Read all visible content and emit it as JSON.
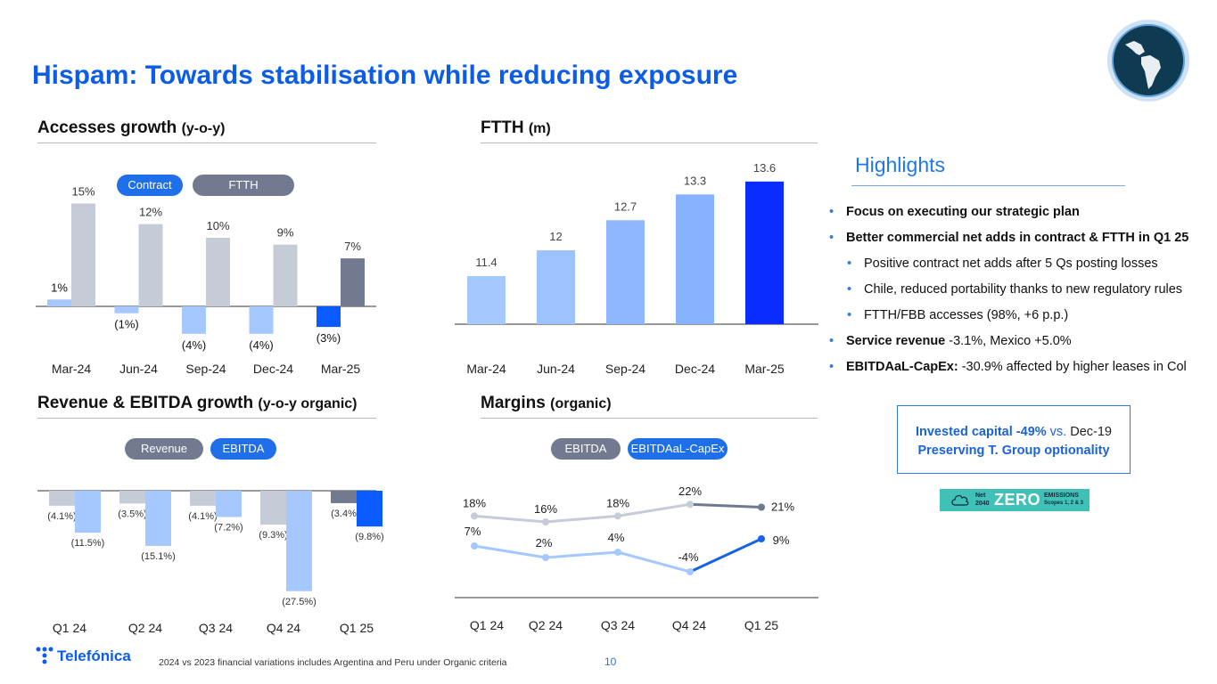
{
  "title": "Hispam: Towards stabilisation while reducing exposure",
  "colors": {
    "brand_blue": "#0b5ce6",
    "light_bar": "#a4c8ff",
    "grey_bar": "#c6cbd8",
    "dark_bar": "#717a91",
    "bright_bar": "#0a2cff"
  },
  "sections": {
    "accesses": {
      "title": "Accesses growth",
      "subtitle": "(y-o-y)"
    },
    "ftth": {
      "title": "FTTH",
      "subtitle": "(m)"
    },
    "revenue": {
      "title": "Revenue & EBITDA growth",
      "subtitle": "(y-o-y organic)"
    },
    "margins": {
      "title": "Margins",
      "subtitle": "(organic)"
    }
  },
  "chart_data": [
    {
      "id": "accesses",
      "type": "bar",
      "categories": [
        "Mar-24",
        "Jun-24",
        "Sep-24",
        "Dec-24",
        "Mar-25"
      ],
      "series": [
        {
          "name": "Contract",
          "values": [
            1,
            -1,
            -4,
            -4,
            -3
          ],
          "labels": [
            "1%",
            "(1%)",
            "(4%)",
            "(4%)",
            "(3%)"
          ]
        },
        {
          "name": "FTTH",
          "values": [
            15,
            12,
            10,
            9,
            7
          ],
          "labels": [
            "15%",
            "12%",
            "10%",
            "9%",
            "7%"
          ]
        }
      ],
      "legend": [
        "Contract",
        "FTTH"
      ]
    },
    {
      "id": "ftth",
      "type": "bar",
      "categories": [
        "Mar-24",
        "Jun-24",
        "Sep-24",
        "Dec-24",
        "Mar-25"
      ],
      "values": [
        11.4,
        12,
        12.7,
        13.3,
        13.6
      ],
      "labels": [
        "11.4",
        "12",
        "12.7",
        "13.3",
        "13.6"
      ]
    },
    {
      "id": "revenue",
      "type": "bar",
      "categories": [
        "Q1 24",
        "Q2 24",
        "Q3 24",
        "Q4 24",
        "Q1 25"
      ],
      "series": [
        {
          "name": "Revenue",
          "values": [
            -4.1,
            -3.5,
            -4.1,
            -9.3,
            -3.4
          ],
          "labels": [
            "(4.1%)",
            "(3.5%)",
            "(4.1%)",
            "(9.3%)",
            "(3.4%"
          ]
        },
        {
          "name": "EBITDA",
          "values": [
            -11.5,
            -15.1,
            -7.2,
            -27.5,
            -9.8
          ],
          "labels": [
            "(11.5%)",
            "(15.1%)",
            "(7.2%)",
            "(27.5%)",
            "(9.8%)"
          ]
        }
      ],
      "legend": [
        "Revenue",
        "EBITDA"
      ]
    },
    {
      "id": "margins",
      "type": "line",
      "categories": [
        "Q1 24",
        "Q2 24",
        "Q3 24",
        "Q4 24",
        "Q1 25"
      ],
      "series": [
        {
          "name": "EBITDA",
          "values": [
            18,
            16,
            18,
            22,
            21
          ],
          "labels": [
            "18%",
            "16%",
            "18%",
            "22%",
            "21%"
          ]
        },
        {
          "name": "EBITDAaL-CapEx",
          "values": [
            7,
            2,
            4,
            -4,
            9
          ],
          "labels": [
            "7%",
            "2%",
            "4%",
            "-4%",
            "9%"
          ]
        }
      ],
      "legend": [
        "EBITDA",
        "EBITDAaL-CapEx"
      ]
    }
  ],
  "highlights": {
    "title": "Highlights",
    "items": [
      {
        "bold": "Focus on executing our strategic plan",
        "text": ""
      },
      {
        "bold": "Better commercial net adds in contract & FTTH in Q1 25",
        "text": ""
      },
      {
        "bold": "",
        "text": "Positive contract net adds after 5 Qs posting losses"
      },
      {
        "bold": "",
        "text": "Chile, reduced portability thanks to new regulatory rules"
      },
      {
        "bold": "",
        "text": "FTTH/FBB accesses (98%, +6 p.p.)"
      },
      {
        "bold": "Service revenue",
        "text": " -3.1%, Mexico +5.0%"
      },
      {
        "bold": "EBITDAaL-CapEx:",
        "text": " -30.9% affected by higher leases in Col"
      }
    ]
  },
  "invested_box": {
    "line1_bold": "Invested capital -49%",
    "line1_vs": " vs.",
    "line1_rest": " Dec-19",
    "line2": "Preserving T. Group optionality"
  },
  "net_zero": {
    "net": "Net",
    "year": "2040",
    "zero": "ZERO",
    "emissions": "EMISSIONS",
    "scopes": "Scopes 1, 2 & 3"
  },
  "footer": {
    "note": "2024 vs 2023 financial variations includes Argentina and Peru under Organic criteria",
    "page": "10",
    "logo": "Telefónica"
  }
}
